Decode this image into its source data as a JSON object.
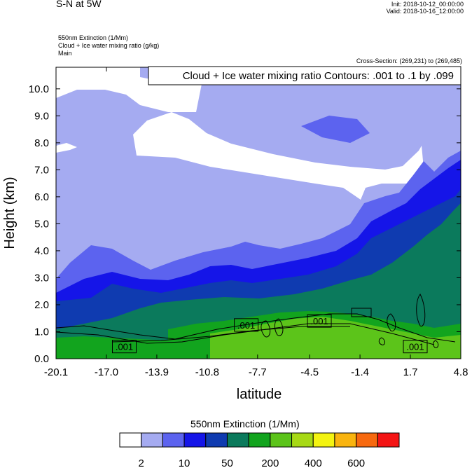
{
  "header": {
    "title": "S-N at 5W",
    "init": "Init: 2018-10-12_00:00:00",
    "valid": "Valid: 2018-10-16_12:00:00",
    "field1": "550nm Extinction   (1/Mm)",
    "field2": "Cloud + Ice water mixing ratio   (g/kg)",
    "field3": "Main",
    "cross_section": "Cross-Section: (269,231) to (269,485)"
  },
  "chart_data": {
    "type": "heatmap",
    "title": "Cloud + Ice water mixing ratio Contours: .001 to .1 by .099",
    "xlabel": "latitude",
    "ylabel": "Height (km)",
    "xlim": [
      -20.1,
      4.8
    ],
    "ylim": [
      0.0,
      10.8
    ],
    "x_ticks": [
      "-20.1",
      "-17.0",
      "-13.9",
      "-10.8",
      "-7.7",
      "-4.5",
      "-1.4",
      "1.7",
      "4.8"
    ],
    "y_ticks": [
      "0.0",
      "1.0",
      "2.0",
      "3.0",
      "4.0",
      "5.0",
      "6.0",
      "7.0",
      "8.0",
      "9.0",
      "10.0"
    ],
    "contour_labels": [
      {
        "text": ".001",
        "x": -15.9,
        "y": 0.45
      },
      {
        "text": ".001",
        "x": -8.4,
        "y": 1.25
      },
      {
        "text": ".001",
        "x": -3.9,
        "y": 1.4
      },
      {
        "text": ".001",
        "x": 2.0,
        "y": 0.45
      }
    ],
    "colorbar": {
      "title": "550nm Extinction  (1/Mm)",
      "colors": [
        "#ffffff",
        "#a5abf1",
        "#5c63ef",
        "#1515e8",
        "#0f3bb0",
        "#0b7a5c",
        "#12a41e",
        "#5cc41a",
        "#a7d915",
        "#f4f411",
        "#f9b40f",
        "#f7690f",
        "#f41414"
      ],
      "labels": [
        "2",
        "10",
        "50",
        "200",
        "400",
        "600"
      ]
    }
  }
}
